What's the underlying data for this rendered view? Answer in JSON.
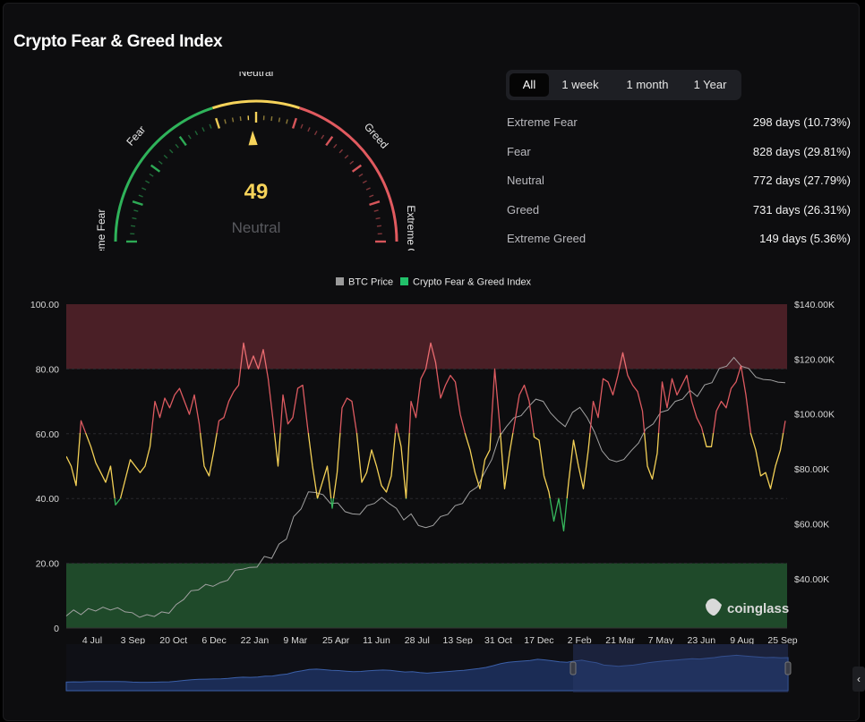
{
  "title": "Crypto Fear & Greed Index",
  "gauge": {
    "value": "49",
    "classification": "Neutral",
    "labels": [
      "Extreme Fear",
      "Fear",
      "Neutral",
      "Greed",
      "Extreme Greed"
    ],
    "colors": {
      "fear": "#2fb35a",
      "neutral": "#f6d35a",
      "greed": "#e15a5f"
    }
  },
  "tabs": [
    {
      "label": "All",
      "active": true
    },
    {
      "label": "1 week",
      "active": false
    },
    {
      "label": "1 month",
      "active": false
    },
    {
      "label": "1 Year",
      "active": false
    }
  ],
  "stats": [
    {
      "label": "Extreme Fear",
      "value": "298 days (10.73%)"
    },
    {
      "label": "Fear",
      "value": "828 days (29.81%)"
    },
    {
      "label": "Neutral",
      "value": "772 days (27.79%)"
    },
    {
      "label": "Greed",
      "value": "731 days (26.31%)"
    },
    {
      "label": "Extreme Greed",
      "value": "149 days (5.36%)"
    }
  ],
  "watermark": "coinglass",
  "chart_data": {
    "type": "line",
    "legend": [
      {
        "name": "BTC Price",
        "color": "#9a9a9a"
      },
      {
        "name": "Crypto Fear & Greed Index",
        "color": "#22c06a"
      }
    ],
    "legend_position": "top-center",
    "left_axis": {
      "ticks": [
        "100.00",
        "80.00",
        "60.00",
        "40.00",
        "20.00",
        "0"
      ],
      "range": [
        0,
        100
      ]
    },
    "right_axis": {
      "ticks": [
        "$140.00K",
        "$120.00K",
        "$100.00K",
        "$80.00K",
        "$60.00K",
        "$40.00K"
      ],
      "range": [
        22000,
        140000
      ]
    },
    "x_ticks": [
      "4 Jul",
      "3 Sep",
      "20 Oct",
      "6 Dec",
      "22 Jan",
      "9 Mar",
      "25 Apr",
      "11 Jun",
      "28 Jul",
      "13 Sep",
      "31 Oct",
      "17 Dec",
      "2 Feb",
      "21 Mar",
      "7 May",
      "23 Jun",
      "9 Aug",
      "25 Sep"
    ],
    "bands": [
      {
        "from": 0,
        "to": 20,
        "color": "#1f4a2a"
      },
      {
        "from": 80,
        "to": 100,
        "color": "#4a1f26"
      }
    ],
    "thresholds": {
      "extreme_fear": 20,
      "fear": 40,
      "greed": 60,
      "extreme_greed": 80
    },
    "index_series": {
      "name": "Crypto Fear & Greed Index",
      "values": [
        53,
        50,
        44,
        64,
        60,
        56,
        51,
        48,
        45,
        50,
        38,
        40,
        46,
        52,
        50,
        48,
        50,
        56,
        70,
        65,
        71,
        68,
        72,
        74,
        70,
        66,
        72,
        63,
        50,
        47,
        55,
        64,
        65,
        70,
        73,
        75,
        88,
        80,
        84,
        80,
        86,
        77,
        64,
        50,
        72,
        63,
        65,
        74,
        75,
        62,
        50,
        40,
        45,
        50,
        37,
        48,
        68,
        71,
        70,
        60,
        45,
        48,
        55,
        50,
        44,
        42,
        47,
        63,
        56,
        40,
        70,
        65,
        77,
        80,
        88,
        82,
        71,
        75,
        78,
        76,
        66,
        60,
        55,
        48,
        43,
        52,
        55,
        80,
        63,
        43,
        54,
        63,
        72,
        75,
        70,
        59,
        58,
        47,
        42,
        33,
        40,
        30,
        45,
        58,
        50,
        43,
        55,
        70,
        65,
        77,
        76,
        72,
        78,
        85,
        78,
        75,
        73,
        67,
        50,
        46,
        54,
        76,
        68,
        77,
        72,
        75,
        78,
        70,
        65,
        62,
        56,
        56,
        67,
        70,
        68,
        74,
        76,
        81,
        72,
        60,
        55,
        47,
        48,
        43,
        50,
        55,
        64
      ]
    },
    "price_series": {
      "name": "BTC Price",
      "values": [
        27000,
        28000,
        27500,
        28500,
        28800,
        29000,
        29200,
        28800,
        28500,
        27000,
        26500,
        26300,
        26800,
        27300,
        28000,
        30000,
        33000,
        35000,
        36500,
        37300,
        37800,
        38000,
        40000,
        42500,
        44000,
        43500,
        44800,
        47500,
        48000,
        52000,
        55000,
        62000,
        66000,
        71000,
        72000,
        70000,
        68000,
        67000,
        65000,
        63000,
        64000,
        66000,
        68000,
        69000,
        68000,
        65000,
        62000,
        63000,
        60000,
        58000,
        60000,
        62000,
        64000,
        66000,
        68000,
        71000,
        74000,
        78000,
        84000,
        91000,
        96000,
        98000,
        100000,
        102000,
        106000,
        104000,
        101000,
        97000,
        96000,
        100000,
        103000,
        98000,
        94000,
        86000,
        84000,
        82000,
        84000,
        86000,
        90000,
        94000,
        97000,
        100000,
        102000,
        104000,
        106000,
        108000,
        107000,
        110000,
        112000,
        116000,
        118000,
        120000,
        118000,
        116000,
        114000,
        112000,
        113000,
        111000,
        112000
      ]
    }
  }
}
